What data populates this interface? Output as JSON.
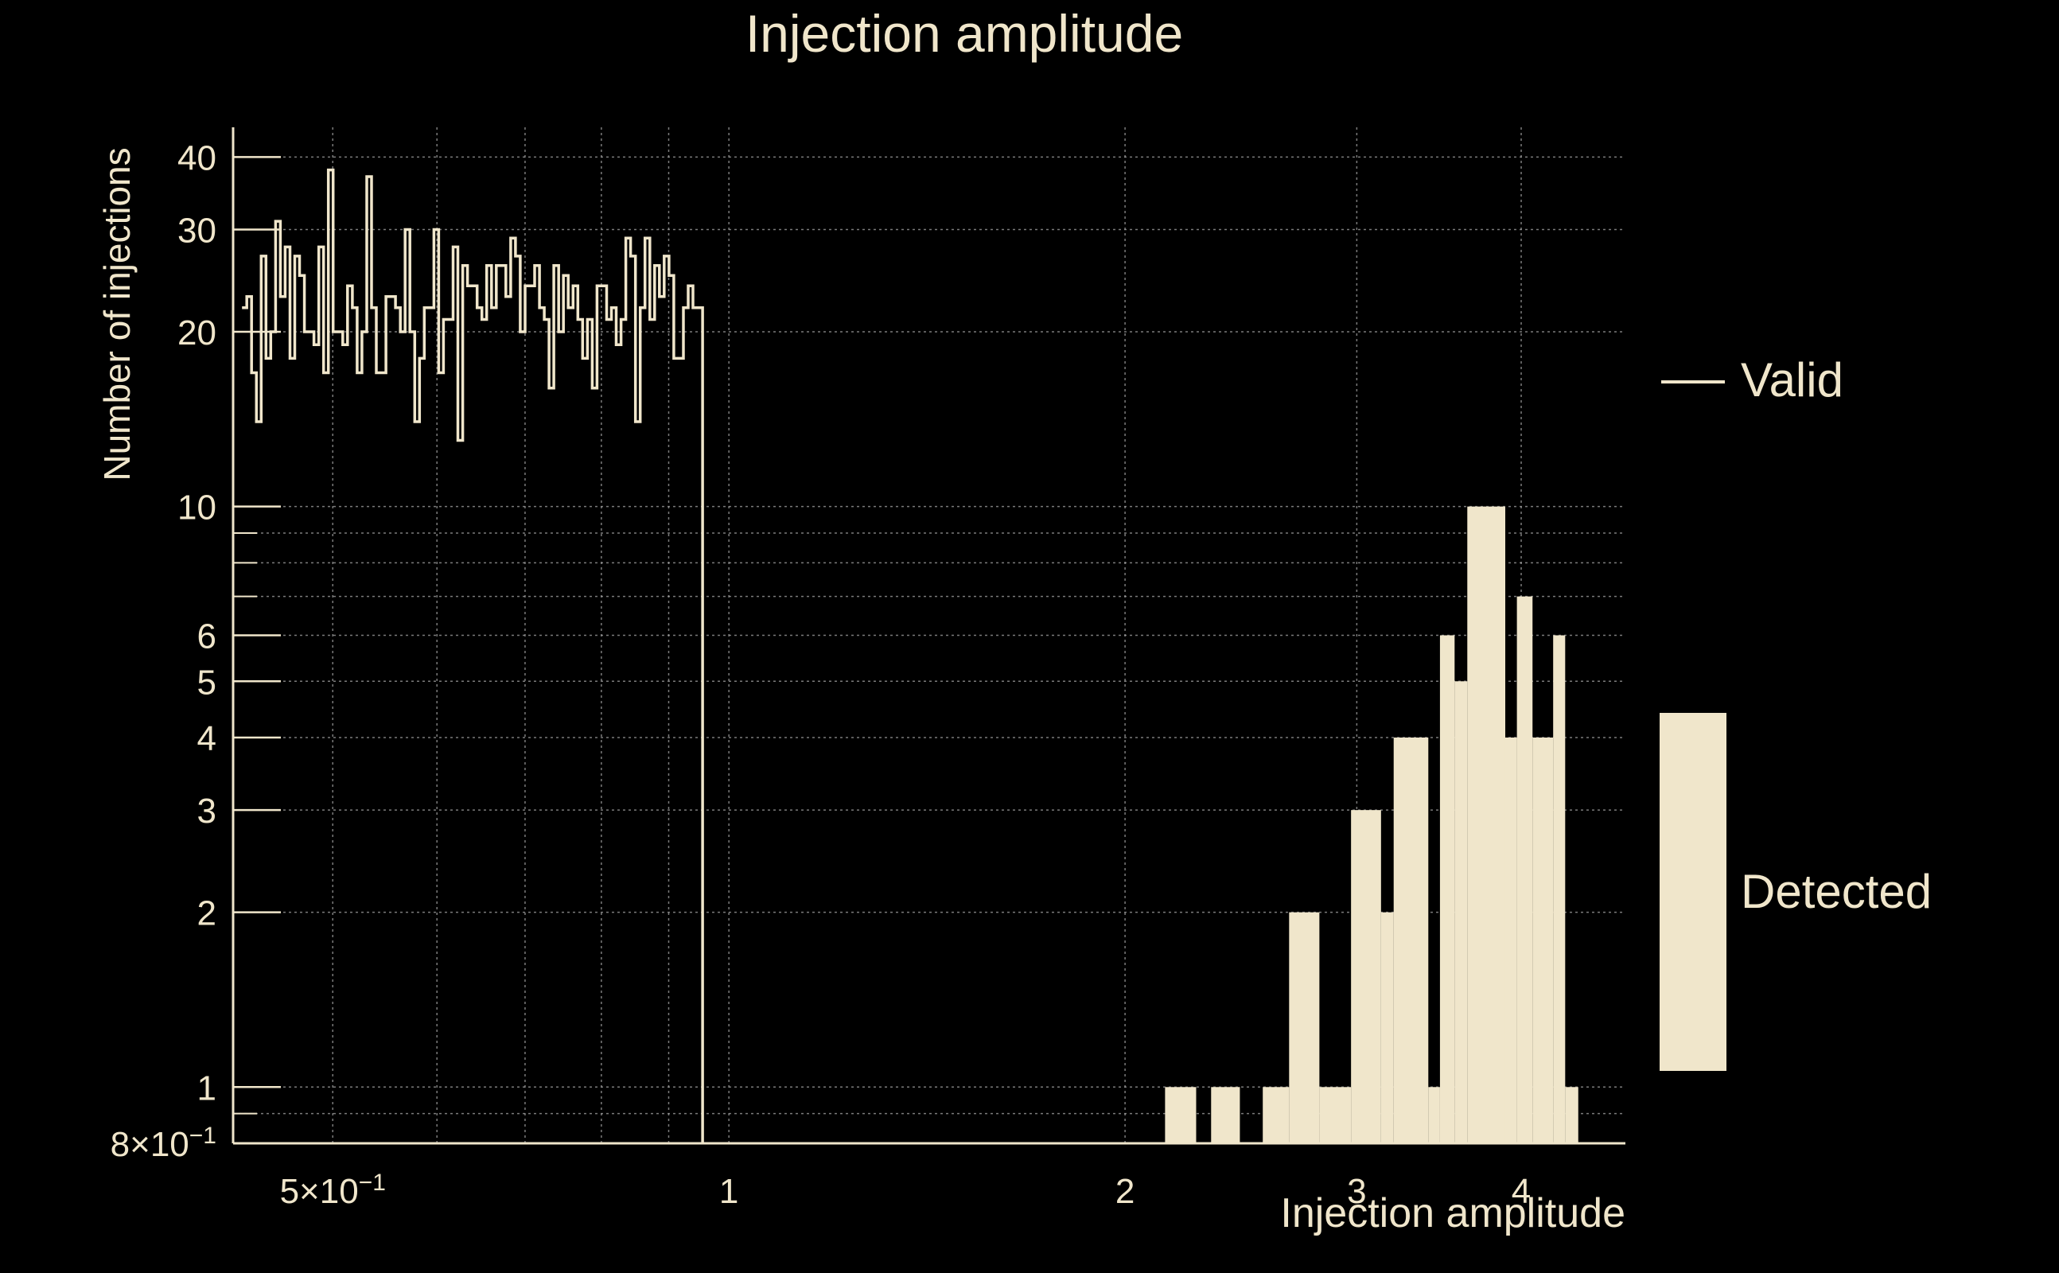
{
  "colors": {
    "background": "#000000",
    "foreground": "#f0e6cb",
    "grid": "#9a9a9a"
  },
  "chart_data": {
    "type": "histogram",
    "title": "Injection amplitude",
    "xlabel": "Injection amplitude",
    "ylabel": "Number of injections",
    "x_scale": "log",
    "y_scale": "log",
    "xlim": [
      0.42,
      4.8
    ],
    "ylim": [
      0.8,
      45
    ],
    "grid": true,
    "legend_position": "right",
    "x_ticks": [
      {
        "value": 0.5,
        "label": "5×10",
        "exp": "−1"
      },
      {
        "value": 1,
        "label": "1"
      },
      {
        "value": 2,
        "label": "2"
      },
      {
        "value": 3,
        "label": "3"
      },
      {
        "value": 4,
        "label": "4"
      }
    ],
    "x_minor_gridlines": [
      0.6,
      0.7,
      0.8,
      0.9
    ],
    "y_ticks": [
      {
        "value": 0.8,
        "label": "8×10",
        "exp": "−1"
      },
      {
        "value": 1,
        "label": "1"
      },
      {
        "value": 2,
        "label": "2"
      },
      {
        "value": 3,
        "label": "3"
      },
      {
        "value": 4,
        "label": "4"
      },
      {
        "value": 5,
        "label": "5"
      },
      {
        "value": 6,
        "label": "6"
      },
      {
        "value": 10,
        "label": "10"
      },
      {
        "value": 20,
        "label": "20"
      },
      {
        "value": 30,
        "label": "30"
      },
      {
        "value": 40,
        "label": "40"
      }
    ],
    "y_minor_gridlines": [
      0.9,
      7,
      8,
      9
    ],
    "bin_edges_log10": [
      -0.37,
      -0.02
    ],
    "bin_count": 96,
    "series": [
      {
        "name": "Valid",
        "style": "step",
        "counts": [
          22,
          23,
          17,
          14,
          27,
          18,
          20,
          31,
          23,
          28,
          18,
          27,
          25,
          20,
          20,
          19,
          28,
          17,
          38,
          20,
          20,
          19,
          24,
          22,
          17,
          20,
          37,
          22,
          17,
          17,
          23,
          23,
          22,
          20,
          30,
          20,
          14,
          18,
          22,
          22,
          30,
          17,
          21,
          21,
          28,
          13,
          26,
          24,
          24,
          22,
          21,
          26,
          22,
          26,
          26,
          23,
          29,
          27,
          20,
          24,
          24,
          26,
          22,
          21,
          16,
          26,
          20,
          25,
          22,
          24,
          21,
          18,
          21,
          16,
          24,
          24,
          21,
          22,
          19,
          21,
          29,
          27,
          14,
          22,
          29,
          21,
          26,
          23,
          27,
          25,
          18,
          18,
          22,
          24,
          22,
          22
        ],
        "last_bin_partial": true
      },
      {
        "name": "Detected",
        "style": "filled",
        "bins": [
          {
            "x0": 2.145,
            "x1": 2.265,
            "y": 1
          },
          {
            "x0": 2.325,
            "x1": 2.445,
            "y": 1
          },
          {
            "x0": 2.545,
            "x1": 2.665,
            "y": 1
          },
          {
            "x0": 2.665,
            "x1": 2.81,
            "y": 2
          },
          {
            "x0": 2.81,
            "x1": 2.97,
            "y": 1
          },
          {
            "x0": 2.97,
            "x1": 3.13,
            "y": 3
          },
          {
            "x0": 3.13,
            "x1": 3.2,
            "y": 2
          },
          {
            "x0": 3.2,
            "x1": 3.4,
            "y": 4
          },
          {
            "x0": 3.4,
            "x1": 3.47,
            "y": 1
          },
          {
            "x0": 3.47,
            "x1": 3.56,
            "y": 6
          },
          {
            "x0": 3.56,
            "x1": 3.64,
            "y": 5
          },
          {
            "x0": 3.64,
            "x1": 3.89,
            "y": 10
          },
          {
            "x0": 3.89,
            "x1": 3.97,
            "y": 4
          },
          {
            "x0": 3.97,
            "x1": 4.08,
            "y": 7
          },
          {
            "x0": 4.08,
            "x1": 4.23,
            "y": 4
          },
          {
            "x0": 4.23,
            "x1": 4.32,
            "y": 6
          },
          {
            "x0": 4.32,
            "x1": 4.42,
            "y": 1
          }
        ]
      }
    ]
  }
}
